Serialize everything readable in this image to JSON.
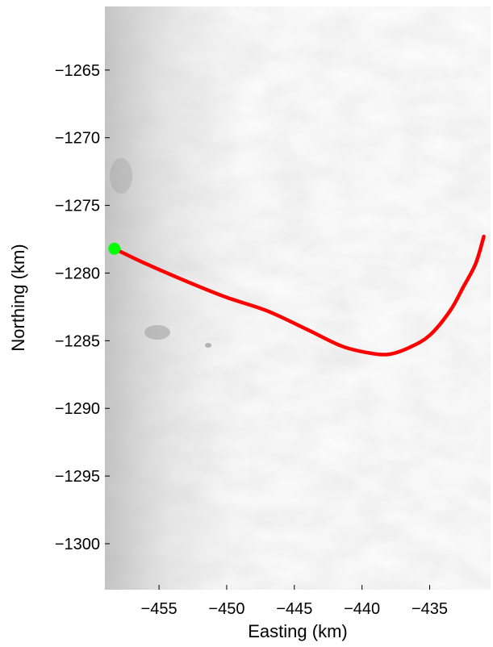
{
  "chart_data": {
    "type": "line",
    "title": "",
    "xlabel": "Easting (km)",
    "ylabel": "Northing (km)",
    "xlim": [
      -459,
      -430.5
    ],
    "ylim": [
      -1303.4,
      -1260.3
    ],
    "x_ticks": [
      -455,
      -450,
      -445,
      -440,
      -435
    ],
    "x_tick_labels": [
      "−455",
      "−450",
      "−445",
      "−440",
      "−435"
    ],
    "y_ticks": [
      -1265,
      -1270,
      -1275,
      -1280,
      -1285,
      -1290,
      -1295,
      -1300
    ],
    "y_tick_labels": [
      "−1265",
      "−1270",
      "−1275",
      "−1280",
      "−1285",
      "−1290",
      "−1295",
      "−1300"
    ],
    "grid": false,
    "background": "grayscale satellite imagery of ice surface",
    "series": [
      {
        "color": "#ff0000",
        "x": [
          -458.3,
          -456.0,
          -453.0,
          -450.0,
          -447.0,
          -444.0,
          -441.5,
          -439.5,
          -438.0,
          -436.5,
          -435.0,
          -433.5,
          -432.5,
          -431.6,
          -431.0
        ],
        "y": [
          -1278.2,
          -1279.3,
          -1280.6,
          -1281.8,
          -1282.8,
          -1284.2,
          -1285.4,
          -1285.9,
          -1286.0,
          -1285.5,
          -1284.6,
          -1282.8,
          -1281.0,
          -1279.3,
          -1277.3
        ]
      }
    ],
    "markers": [
      {
        "color": "#00ff00",
        "x": -458.3,
        "y": -1278.2
      }
    ]
  }
}
